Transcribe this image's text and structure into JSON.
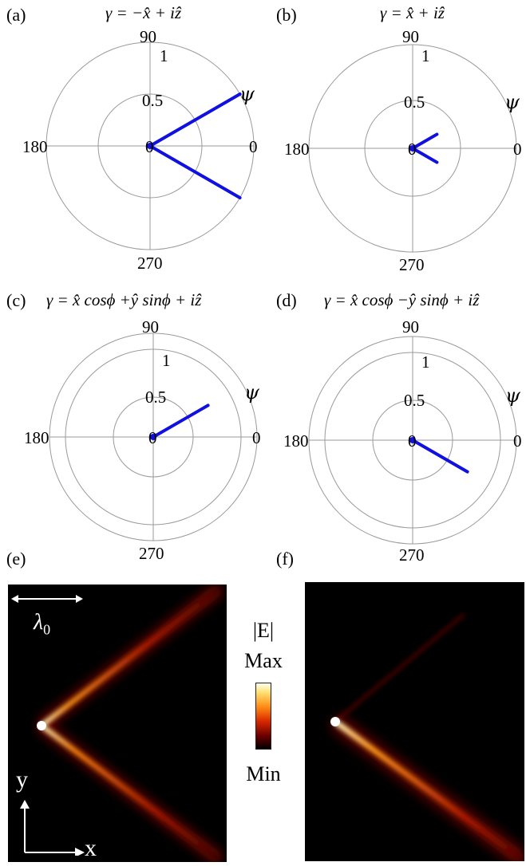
{
  "panels": [
    {
      "tag": "(a)",
      "equation": "γ = −x̂ + iẑ",
      "angle_labels": [
        "90",
        "180",
        "0",
        "270"
      ],
      "radial_labels": [
        "0.5",
        "1"
      ],
      "center_label": "0",
      "psi_label": "ψ",
      "chart_data": {
        "type": "polar",
        "series": [
          {
            "values": [
              {
                "angle_deg": 30,
                "r": 1.0
              },
              {
                "angle_deg": -30,
                "r": 1.0
              }
            ]
          }
        ],
        "rlim": [
          0,
          1
        ],
        "color": "#1010e0"
      }
    },
    {
      "tag": "(b)",
      "equation": "γ = x̂ + iẑ",
      "angle_labels": [
        "90",
        "180",
        "0",
        "270"
      ],
      "radial_labels": [
        "0.5",
        "1"
      ],
      "center_label": "0",
      "psi_label": "ψ",
      "chart_data": {
        "type": "polar",
        "series": [
          {
            "values": [
              {
                "angle_deg": 30,
                "r": 0.27
              },
              {
                "angle_deg": -30,
                "r": 0.27
              }
            ]
          }
        ],
        "rlim": [
          0,
          1
        ],
        "color": "#1010e0"
      }
    },
    {
      "tag": "(c)",
      "equation": "γ = x̂ cosϕ +ŷ sinϕ + iẑ",
      "angle_labels": [
        "90",
        "180",
        "0",
        "270"
      ],
      "radial_labels": [
        "0.5",
        "1"
      ],
      "center_label": "0",
      "psi_label": "ψ",
      "chart_data": {
        "type": "polar",
        "series": [
          {
            "values": [
              {
                "angle_deg": 30,
                "r": 0.72
              }
            ]
          }
        ],
        "rlim": [
          0,
          1
        ],
        "color": "#1010e0"
      }
    },
    {
      "tag": "(d)",
      "equation": "γ = x̂ cosϕ −ŷ sinϕ + iẑ",
      "angle_labels": [
        "90",
        "180",
        "0",
        "270"
      ],
      "radial_labels": [
        "0.5",
        "1"
      ],
      "center_label": "0",
      "psi_label": "ψ",
      "chart_data": {
        "type": "polar",
        "series": [
          {
            "values": [
              {
                "angle_deg": -30,
                "r": 0.72
              }
            ]
          }
        ],
        "rlim": [
          0,
          1
        ],
        "color": "#1010e0"
      }
    }
  ],
  "field_panels": [
    {
      "tag": "(e)",
      "scale_label": "λ",
      "scale_sub": "0",
      "y_axis": "y",
      "x_axis": "x"
    },
    {
      "tag": "(f)"
    }
  ],
  "colorbar": {
    "title": "|E|",
    "max_label": "Max",
    "min_label": "Min"
  }
}
